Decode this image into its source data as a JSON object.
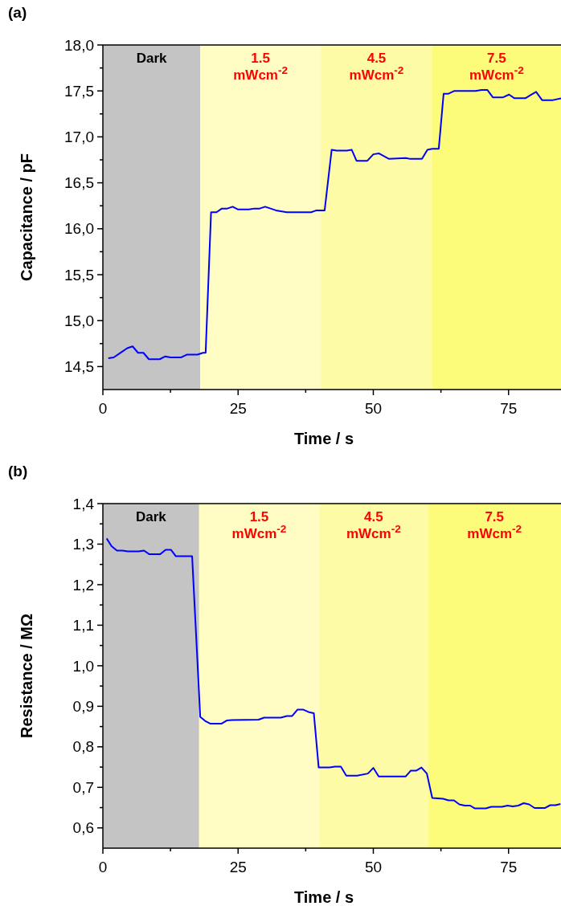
{
  "chart_data": [
    {
      "type": "line",
      "title": "(a)",
      "xlabel": "Time / s",
      "ylabel": "Capacitance / pF",
      "xlim": [
        0,
        84.7
      ],
      "ylim": [
        14.25,
        18
      ],
      "xticks": [
        0,
        {
          "value": 12.5,
          "label": null
        },
        25,
        {
          "value": 37.5,
          "label": null
        },
        50,
        {
          "value": 62.5,
          "label": null
        },
        75
      ],
      "yticks": [
        {
          "value": 14.5,
          "label": "14,5"
        },
        {
          "value": 14.75,
          "label": null
        },
        {
          "value": 15,
          "label": "15,0"
        },
        {
          "value": 15.25,
          "label": null
        },
        {
          "value": 15.5,
          "label": "15,5"
        },
        {
          "value": 15.75,
          "label": null
        },
        {
          "value": 16,
          "label": "16,0"
        },
        {
          "value": 16.25,
          "label": null
        },
        {
          "value": 16.5,
          "label": "16,5"
        },
        {
          "value": 16.75,
          "label": null
        },
        {
          "value": 17,
          "label": "17,0"
        },
        {
          "value": 17.25,
          "label": null
        },
        {
          "value": 17.5,
          "label": "17,5"
        },
        {
          "value": 17.75,
          "label": null
        },
        {
          "value": 18,
          "label": "18,0"
        }
      ],
      "bands": [
        {
          "axis": "x",
          "from": 0,
          "to": 18,
          "label": "Dark",
          "color": "#c4c4c4"
        },
        {
          "axis": "x",
          "from": 18,
          "to": 40.3,
          "label": "1.5 mWcm$^{-2}$",
          "color": "#fffcc4"
        },
        {
          "axis": "x",
          "from": 40.3,
          "to": 60.9,
          "label": "4.5 mWcm$^{-2}$",
          "color": "#fdfba6"
        },
        {
          "axis": "x",
          "from": 60.9,
          "to": 84.7,
          "label": "7.5 mWcm$^{-2}$",
          "color": "#fdfb7a"
        }
      ],
      "series": [
        {
          "color": "#0000ff",
          "x": [
            1,
            2,
            3.5,
            4.5,
            5.5,
            6.5,
            7.5,
            8.5,
            10.5,
            11.5,
            12.5,
            14.5,
            15.5,
            17.5,
            18.5,
            19,
            20,
            21,
            22,
            23,
            24,
            25,
            27,
            28,
            29,
            30,
            31,
            32,
            34,
            36,
            38.5,
            39.5,
            41,
            42.3,
            43.2,
            45.1,
            46,
            46.9,
            48.9,
            50,
            51,
            52.9,
            56,
            56.8,
            59,
            60,
            60.9,
            62.1,
            63,
            63.9,
            65,
            68.9,
            70,
            71.1,
            72.1,
            74,
            75.1,
            76.1,
            78.1,
            79.2,
            80.1,
            81.2,
            83.2,
            84.7
          ],
          "values": [
            14.59,
            14.6,
            14.66,
            14.7,
            14.72,
            14.65,
            14.65,
            14.58,
            14.58,
            14.61,
            14.6,
            14.6,
            14.63,
            14.63,
            14.65,
            14.65,
            16.18,
            16.18,
            16.22,
            16.22,
            16.24,
            16.21,
            16.21,
            16.22,
            16.22,
            16.24,
            16.22,
            16.2,
            16.18,
            16.18,
            16.18,
            16.2,
            16.2,
            16.86,
            16.85,
            16.85,
            16.86,
            16.74,
            16.74,
            16.81,
            16.82,
            16.76,
            16.77,
            16.76,
            16.76,
            16.86,
            16.87,
            16.87,
            17.47,
            17.47,
            17.5,
            17.5,
            17.51,
            17.51,
            17.43,
            17.43,
            17.46,
            17.42,
            17.42,
            17.46,
            17.49,
            17.4,
            17.4,
            17.42
          ]
        }
      ]
    },
    {
      "type": "line",
      "title": "(b)",
      "xlabel": "Time / s",
      "ylabel": "Resistance / MΩ",
      "xlim": [
        0,
        84.7
      ],
      "ylim": [
        0.55,
        1.4
      ],
      "xticks": [
        0,
        {
          "value": 12.5,
          "label": null
        },
        25,
        {
          "value": 37.5,
          "label": null
        },
        50,
        {
          "value": 62.5,
          "label": null
        },
        75
      ],
      "yticks": [
        {
          "value": 0.6,
          "label": "0,6"
        },
        {
          "value": 0.65,
          "label": null
        },
        {
          "value": 0.7,
          "label": "0,7"
        },
        {
          "value": 0.75,
          "label": null
        },
        {
          "value": 0.8,
          "label": "0,8"
        },
        {
          "value": 0.85,
          "label": null
        },
        {
          "value": 0.9,
          "label": "0,9"
        },
        {
          "value": 0.95,
          "label": null
        },
        {
          "value": 1.0,
          "label": "1,0"
        },
        {
          "value": 1.05,
          "label": null
        },
        {
          "value": 1.1,
          "label": "1,1"
        },
        {
          "value": 1.15,
          "label": null
        },
        {
          "value": 1.2,
          "label": "1,2"
        },
        {
          "value": 1.25,
          "label": null
        },
        {
          "value": 1.3,
          "label": "1,3"
        },
        {
          "value": 1.35,
          "label": null
        },
        {
          "value": 1.4,
          "label": "1,4"
        }
      ],
      "bands": [
        {
          "axis": "x",
          "from": 0,
          "to": 17.8,
          "label": "Dark",
          "color": "#c4c4c4"
        },
        {
          "axis": "x",
          "from": 17.8,
          "to": 40,
          "label": "1.5 mWcm$^{-2}$",
          "color": "#fffcc4"
        },
        {
          "axis": "x",
          "from": 40,
          "to": 60.1,
          "label": "4.5 mWcm$^{-2}$",
          "color": "#fdfba6"
        },
        {
          "axis": "x",
          "from": 60.1,
          "to": 84.7,
          "label": "7.5 mWcm$^{-2}$",
          "color": "#fdfb7a"
        }
      ],
      "series": [
        {
          "color": "#0000ff",
          "x": [
            0.7,
            1.6,
            2.6,
            3.6,
            4.6,
            6.6,
            7.6,
            8.6,
            10.6,
            11.6,
            12.6,
            13.5,
            16.5,
            18,
            18.9,
            19.9,
            21.9,
            22.9,
            23.9,
            28.8,
            29.8,
            32.9,
            34,
            35,
            36,
            37,
            38,
            39,
            39.9,
            41.9,
            42.9,
            44,
            45,
            47,
            49,
            50,
            51,
            56,
            56.9,
            57.9,
            58.9,
            59.9,
            60.9,
            62.9,
            63.9,
            64.9,
            65.9,
            66.9,
            67.9,
            68.8,
            70.8,
            71.8,
            73.8,
            74.8,
            75.8,
            76.8,
            77.8,
            78.8,
            79.8,
            81.7,
            82.7,
            83.7,
            84.6
          ],
          "values": [
            1.314,
            1.295,
            1.284,
            1.284,
            1.282,
            1.282,
            1.284,
            1.275,
            1.275,
            1.286,
            1.286,
            1.27,
            1.27,
            0.874,
            0.864,
            0.857,
            0.857,
            0.865,
            0.866,
            0.867,
            0.872,
            0.872,
            0.876,
            0.876,
            0.892,
            0.892,
            0.886,
            0.883,
            0.749,
            0.749,
            0.751,
            0.751,
            0.729,
            0.729,
            0.734,
            0.748,
            0.727,
            0.727,
            0.741,
            0.741,
            0.749,
            0.734,
            0.674,
            0.672,
            0.668,
            0.668,
            0.658,
            0.655,
            0.655,
            0.648,
            0.648,
            0.652,
            0.652,
            0.655,
            0.653,
            0.655,
            0.661,
            0.658,
            0.649,
            0.649,
            0.656,
            0.656,
            0.659
          ]
        }
      ]
    }
  ]
}
